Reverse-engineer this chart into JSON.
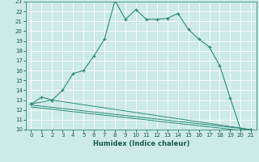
{
  "title": "",
  "xlabel": "Humidex (Indice chaleur)",
  "bg_color": "#cceae7",
  "grid_color": "#ffffff",
  "line_color": "#2e8b7a",
  "xlim": [
    -0.5,
    21.5
  ],
  "ylim": [
    10,
    23
  ],
  "xticks": [
    0,
    1,
    2,
    3,
    4,
    5,
    6,
    7,
    8,
    9,
    10,
    11,
    12,
    13,
    14,
    15,
    16,
    17,
    18,
    19,
    20,
    21
  ],
  "yticks": [
    10,
    11,
    12,
    13,
    14,
    15,
    16,
    17,
    18,
    19,
    20,
    21,
    22,
    23
  ],
  "curve1_x": [
    0,
    1,
    2,
    3,
    4,
    5,
    6,
    7,
    8,
    9,
    10,
    11,
    12,
    13,
    14,
    15,
    16,
    17,
    18,
    19,
    20,
    21
  ],
  "curve1_y": [
    12.6,
    13.3,
    13.0,
    14.0,
    15.7,
    16.0,
    17.5,
    19.2,
    23.1,
    21.2,
    22.2,
    21.2,
    21.2,
    21.3,
    21.8,
    20.2,
    19.2,
    18.4,
    16.5,
    13.2,
    10.0,
    10.0
  ],
  "curve2_x": [
    0,
    2,
    21
  ],
  "curve2_y": [
    12.6,
    13.0,
    10.0
  ],
  "curve3_x": [
    0,
    21
  ],
  "curve3_y": [
    12.5,
    10.0
  ],
  "curve4_x": [
    0,
    21
  ],
  "curve4_y": [
    12.3,
    9.8
  ],
  "xlabel_fontsize": 6.0,
  "tick_fontsize": 5.0
}
